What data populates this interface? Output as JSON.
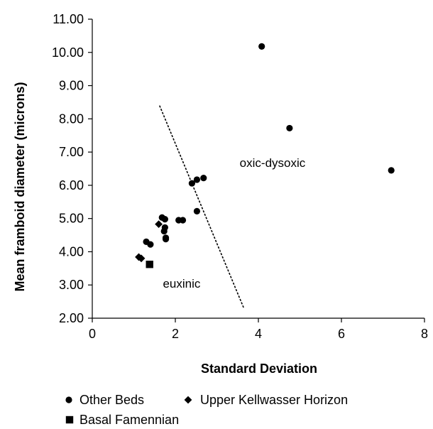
{
  "chart_data": {
    "type": "scatter",
    "xlabel": "Standard Deviation",
    "ylabel": "Mean framboid diameter (microns)",
    "xlim": [
      0,
      8
    ],
    "ylim": [
      2,
      11
    ],
    "x_ticks": [
      "0",
      "2",
      "4",
      "6",
      "8"
    ],
    "y_ticks": [
      "2.00",
      "3.00",
      "4.00",
      "5.00",
      "6.00",
      "7.00",
      "8.00",
      "9.00",
      "10.00",
      "11.00"
    ],
    "grid": false,
    "legend_position": "bottom-left",
    "series": [
      {
        "name": "Other Beds",
        "marker": "circle",
        "color": "#000000",
        "points": [
          [
            4.08,
            10.18
          ],
          [
            4.75,
            7.72
          ],
          [
            7.2,
            6.45
          ],
          [
            2.68,
            6.22
          ],
          [
            2.52,
            6.17
          ],
          [
            2.4,
            6.06
          ],
          [
            2.52,
            5.22
          ],
          [
            2.08,
            4.95
          ],
          [
            2.18,
            4.95
          ],
          [
            1.68,
            5.03
          ],
          [
            1.75,
            4.98
          ],
          [
            1.75,
            4.73
          ],
          [
            1.73,
            4.62
          ],
          [
            1.77,
            4.42
          ],
          [
            1.77,
            4.38
          ],
          [
            1.3,
            4.3
          ],
          [
            1.4,
            4.22
          ]
        ]
      },
      {
        "name": "Upper Kellwasser Horizon",
        "marker": "diamond",
        "color": "#000000",
        "points": [
          [
            1.12,
            3.84
          ],
          [
            1.18,
            3.8
          ],
          [
            1.6,
            4.83
          ]
        ]
      },
      {
        "name": "Basal Famennian",
        "marker": "square",
        "color": "#000000",
        "points": [
          [
            1.38,
            3.62
          ]
        ]
      }
    ],
    "divider_line": {
      "x": [
        1.62,
        3.65
      ],
      "y": [
        8.4,
        2.3
      ],
      "style": "dashed"
    },
    "annotations": [
      {
        "text": "oxic-dysoxic",
        "x": 3.55,
        "y": 6.55
      },
      {
        "text": "euxinic",
        "x": 1.7,
        "y": 2.92
      }
    ]
  }
}
